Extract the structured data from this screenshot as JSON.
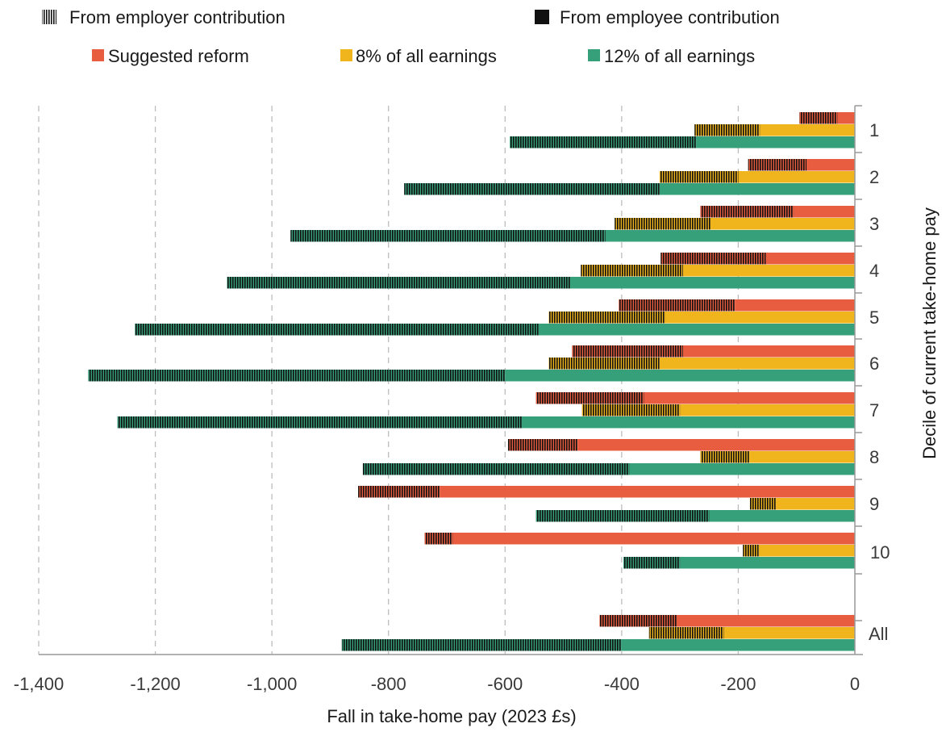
{
  "legend": {
    "employer": "From employer contribution",
    "employee": "From employee contribution",
    "reform": "Suggested reform",
    "eight": "8% of all earnings",
    "twelve": "12% of all earnings"
  },
  "colors": {
    "reform": "#E85D3F",
    "eight": "#F0B41C",
    "twelve": "#35A07A",
    "hatch": "#111111",
    "grid": "#bdbdbd",
    "axis": "#999999"
  },
  "chart_data": {
    "type": "bar",
    "orientation": "horizontal",
    "stacked": true,
    "title": "",
    "xlabel": "Fall in take-home pay (2023 £s)",
    "ylabel": "Decile of current take-home pay",
    "xlim": [
      -1400,
      0
    ],
    "xticks": [
      -1400,
      -1200,
      -1000,
      -800,
      -600,
      -400,
      -200,
      0
    ],
    "xtick_labels": [
      "-1,400",
      "-1,200",
      "-1,000",
      "-800",
      "-600",
      "-400",
      "-200",
      "0"
    ],
    "grid": "vertical dashed",
    "legend_position": "top",
    "categories": [
      "1",
      "2",
      "3",
      "4",
      "5",
      "6",
      "7",
      "8",
      "9",
      "10",
      "All"
    ],
    "series": [
      {
        "name": "Suggested reform",
        "color_key": "reform",
        "employee": [
          -30,
          -83,
          -105,
          -153,
          -205,
          -295,
          -362,
          -475,
          -712,
          -690,
          -305
        ],
        "employer": [
          -65,
          -100,
          -160,
          -180,
          -200,
          -190,
          -185,
          -120,
          -140,
          -48,
          -133
        ]
      },
      {
        "name": "8% of all earnings",
        "color_key": "eight",
        "employee": [
          -163,
          -200,
          -247,
          -295,
          -325,
          -335,
          -300,
          -180,
          -135,
          -165,
          -225
        ],
        "employer": [
          -112,
          -135,
          -165,
          -175,
          -200,
          -190,
          -168,
          -85,
          -45,
          -27,
          -128
        ]
      },
      {
        "name": "12% of all earnings",
        "color_key": "twelve",
        "employee": [
          -272,
          -335,
          -428,
          -487,
          -543,
          -600,
          -570,
          -387,
          -250,
          -300,
          -400
        ],
        "employer": [
          -320,
          -438,
          -540,
          -590,
          -692,
          -715,
          -695,
          -457,
          -297,
          -97,
          -480
        ]
      }
    ]
  }
}
